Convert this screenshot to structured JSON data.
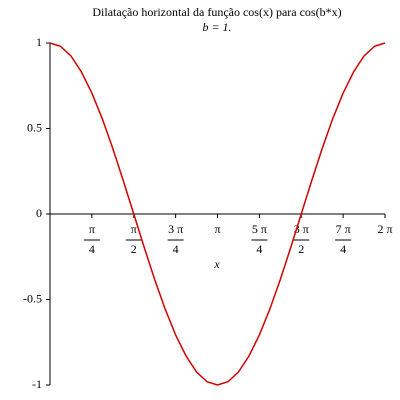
{
  "chart_data": {
    "type": "line",
    "title": "Dilatação horizontal da função cos(x) para cos(b*x)",
    "subtitle": "b = 1.",
    "x_label": "x",
    "x": [
      0,
      0.196,
      0.393,
      0.589,
      0.785,
      0.982,
      1.178,
      1.374,
      1.571,
      1.767,
      1.963,
      2.16,
      2.356,
      2.553,
      2.749,
      2.945,
      3.142,
      3.338,
      3.534,
      3.731,
      3.927,
      4.123,
      4.32,
      4.516,
      4.712,
      4.909,
      5.105,
      5.301,
      5.498,
      5.694,
      5.89,
      6.087,
      6.283
    ],
    "series": [
      {
        "name": "cos(x)",
        "color": "#d40000",
        "values": [
          1,
          0.981,
          0.924,
          0.831,
          0.707,
          0.556,
          0.383,
          0.195,
          0,
          -0.195,
          -0.383,
          -0.556,
          -0.707,
          -0.831,
          -0.924,
          -0.981,
          -1,
          -0.981,
          -0.924,
          -0.831,
          -0.707,
          -0.556,
          -0.383,
          -0.195,
          0,
          0.195,
          0.383,
          0.556,
          0.707,
          0.831,
          0.924,
          0.981,
          1
        ]
      }
    ],
    "xlim": [
      0,
      6.283
    ],
    "xticks": [
      {
        "value": 0.785,
        "label": "π/4"
      },
      {
        "value": 1.571,
        "label": "π/2"
      },
      {
        "value": 2.356,
        "label": "3 π/4"
      },
      {
        "value": 3.142,
        "label": "π"
      },
      {
        "value": 3.927,
        "label": "5 π/4"
      },
      {
        "value": 4.712,
        "label": "3 π/2"
      },
      {
        "value": 5.498,
        "label": "7 π/4"
      },
      {
        "value": 6.283,
        "label": "2 π"
      }
    ],
    "ylim": [
      -1,
      1
    ],
    "yticks": [
      -1,
      -0.5,
      0,
      0.5,
      1
    ]
  }
}
